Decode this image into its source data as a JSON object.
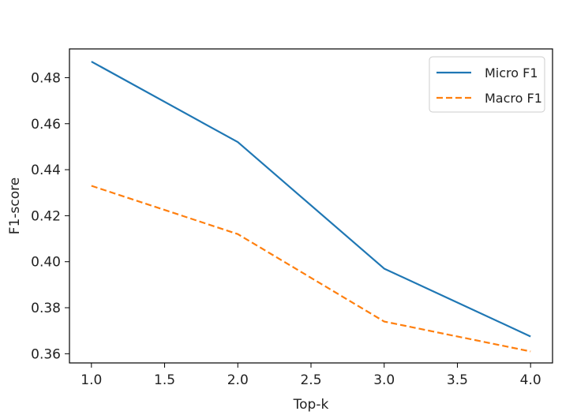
{
  "chart_data": {
    "type": "line",
    "title": "",
    "xlabel": "Top-k",
    "ylabel": "F1-score",
    "x": [
      1.0,
      2.0,
      3.0,
      4.0
    ],
    "xlim": [
      0.85,
      4.15
    ],
    "ylim": [
      0.356,
      0.4925
    ],
    "x_ticks": [
      1.0,
      1.5,
      2.0,
      2.5,
      3.0,
      3.5,
      4.0
    ],
    "x_tick_labels": [
      "1.0",
      "1.5",
      "2.0",
      "2.5",
      "3.0",
      "3.5",
      "4.0"
    ],
    "y_ticks": [
      0.36,
      0.38,
      0.4,
      0.42,
      0.44,
      0.46,
      0.48
    ],
    "y_tick_labels": [
      "0.36",
      "0.38",
      "0.40",
      "0.42",
      "0.44",
      "0.46",
      "0.48"
    ],
    "grid": false,
    "legend_position": "top-right",
    "series": [
      {
        "name": "Micro F1",
        "values": [
          0.487,
          0.452,
          0.397,
          0.3675
        ],
        "color": "#1f77b4",
        "style": "solid"
      },
      {
        "name": "Macro F1",
        "values": [
          0.433,
          0.412,
          0.374,
          0.361
        ],
        "color": "#ff7f0e",
        "style": "dashed"
      }
    ]
  }
}
